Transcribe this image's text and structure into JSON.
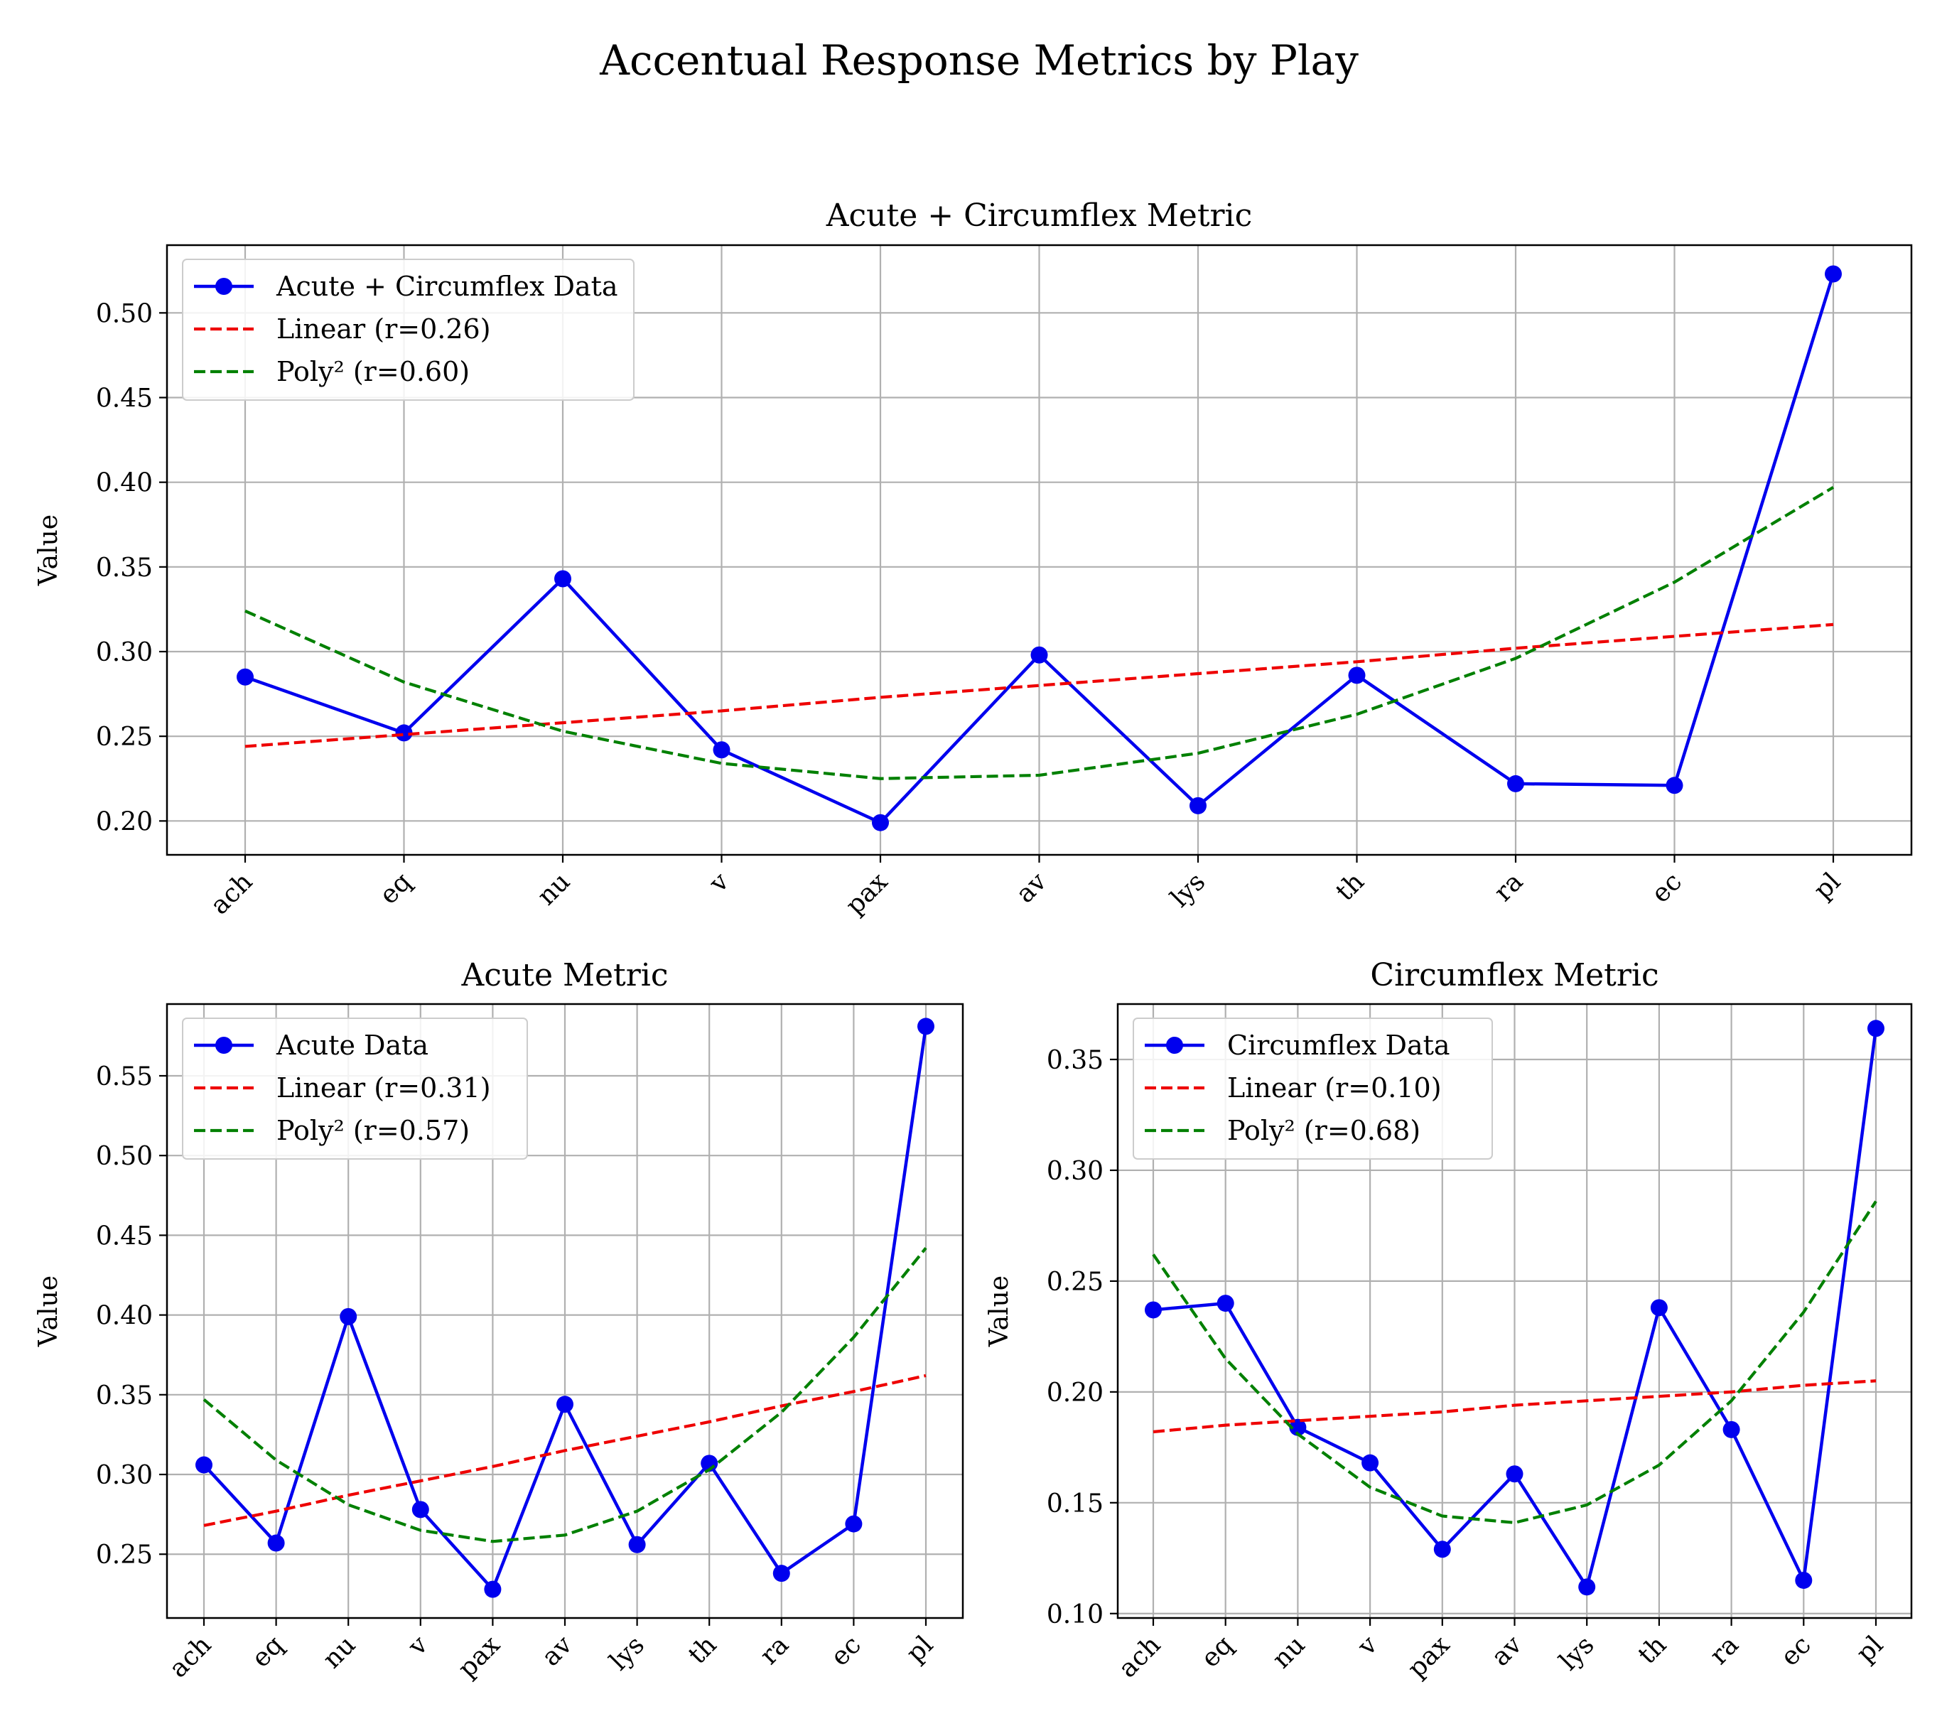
{
  "figure": {
    "title": "Accentual Response Metrics by Play"
  },
  "colors": {
    "data": "#0000ee",
    "linear": "#ee0000",
    "poly": "#008000"
  },
  "chart_data": [
    {
      "type": "line",
      "title": "Acute + Circumflex Metric",
      "ylabel": "Value",
      "xlabel": "",
      "categories": [
        "ach",
        "eq",
        "nu",
        "v",
        "pax",
        "av",
        "lys",
        "th",
        "ra",
        "ec",
        "pl"
      ],
      "ylim": [
        0.18,
        0.54
      ],
      "yticks": [
        0.2,
        0.25,
        0.3,
        0.35,
        0.4,
        0.45,
        0.5
      ],
      "grid": true,
      "legend_position": "top-left",
      "series": [
        {
          "name": "Acute + Circumflex Data",
          "style": "line-marker",
          "values": [
            0.285,
            0.252,
            0.343,
            0.242,
            0.199,
            0.298,
            0.209,
            0.286,
            0.222,
            0.221,
            0.523
          ]
        },
        {
          "name": "Linear (r=0.26)",
          "style": "dashed",
          "values": [
            0.244,
            0.251,
            0.258,
            0.265,
            0.273,
            0.28,
            0.287,
            0.294,
            0.302,
            0.309,
            0.316
          ]
        },
        {
          "name": "Poly² (r=0.60)",
          "style": "dashed",
          "values": [
            0.324,
            0.282,
            0.253,
            0.234,
            0.225,
            0.227,
            0.24,
            0.263,
            0.296,
            0.341,
            0.397
          ]
        }
      ]
    },
    {
      "type": "line",
      "title": "Acute Metric",
      "ylabel": "Value",
      "xlabel": "",
      "categories": [
        "ach",
        "eq",
        "nu",
        "v",
        "pax",
        "av",
        "lys",
        "th",
        "ra",
        "ec",
        "pl"
      ],
      "ylim": [
        0.21,
        0.595
      ],
      "yticks": [
        0.25,
        0.3,
        0.35,
        0.4,
        0.45,
        0.5,
        0.55
      ],
      "grid": true,
      "legend_position": "top-left",
      "series": [
        {
          "name": "Acute Data",
          "style": "line-marker",
          "values": [
            0.306,
            0.257,
            0.399,
            0.278,
            0.228,
            0.344,
            0.256,
            0.307,
            0.238,
            0.269,
            0.581
          ]
        },
        {
          "name": "Linear (r=0.31)",
          "style": "dashed",
          "values": [
            0.268,
            0.277,
            0.287,
            0.296,
            0.305,
            0.315,
            0.324,
            0.333,
            0.343,
            0.352,
            0.362
          ]
        },
        {
          "name": "Poly² (r=0.57)",
          "style": "dashed",
          "values": [
            0.347,
            0.309,
            0.281,
            0.265,
            0.258,
            0.262,
            0.277,
            0.303,
            0.339,
            0.386,
            0.442
          ]
        }
      ]
    },
    {
      "type": "line",
      "title": "Circumflex Metric",
      "ylabel": "Value",
      "xlabel": "",
      "categories": [
        "ach",
        "eq",
        "nu",
        "v",
        "pax",
        "av",
        "lys",
        "th",
        "ra",
        "ec",
        "pl"
      ],
      "ylim": [
        0.098,
        0.375
      ],
      "yticks": [
        0.1,
        0.15,
        0.2,
        0.25,
        0.3,
        0.35
      ],
      "grid": true,
      "legend_position": "top-left",
      "series": [
        {
          "name": "Circumflex Data",
          "style": "line-marker",
          "values": [
            0.237,
            0.24,
            0.184,
            0.168,
            0.129,
            0.163,
            0.112,
            0.238,
            0.183,
            0.115,
            0.364
          ]
        },
        {
          "name": "Linear (r=0.10)",
          "style": "dashed",
          "values": [
            0.182,
            0.185,
            0.187,
            0.189,
            0.191,
            0.194,
            0.196,
            0.198,
            0.2,
            0.203,
            0.205
          ]
        },
        {
          "name": "Poly² (r=0.68)",
          "style": "dashed",
          "values": [
            0.262,
            0.215,
            0.181,
            0.157,
            0.144,
            0.141,
            0.149,
            0.167,
            0.196,
            0.236,
            0.286
          ]
        }
      ]
    }
  ]
}
